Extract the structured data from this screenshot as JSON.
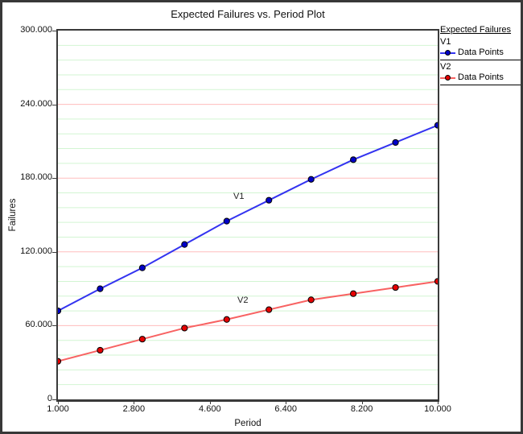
{
  "title": "Expected Failures vs. Period Plot",
  "y_axis": {
    "label": "Failures",
    "tick_labels": [
      "300.000",
      "240.000",
      "180.000",
      "120.000",
      "60.000",
      "0"
    ],
    "tick_values": [
      300,
      240,
      180,
      120,
      60,
      0
    ]
  },
  "x_axis": {
    "label": "Period",
    "tick_labels": [
      "1.000",
      "2.800",
      "4.600",
      "6.400",
      "8.200",
      "10.000"
    ],
    "tick_values": [
      1,
      2.8,
      4.6,
      6.4,
      8.2,
      10
    ]
  },
  "legend": {
    "heading": "Expected Failures",
    "entries": [
      {
        "series": "V1",
        "label": "Data Points"
      },
      {
        "series": "V2",
        "label": "Data Points"
      }
    ]
  },
  "series_labels": {
    "v1": "V1",
    "v2": "V2"
  },
  "colors": {
    "v1_line": "#3333f0",
    "v1_marker": "#0000c8",
    "v2_line": "#f86262",
    "v2_marker": "#e60000",
    "marker_edge": "#000000",
    "grid_minor": "#d2f5d2",
    "grid_major": "#ffbdbd",
    "axis": "#3a3a3a"
  },
  "chart_data": {
    "type": "line",
    "title": "Expected Failures vs. Period Plot",
    "xlabel": "Period",
    "ylabel": "Failures",
    "xlim": [
      1,
      10
    ],
    "ylim": [
      0,
      300
    ],
    "grid": "horizontal only: minor lines every 12 (light green), major lines every 60 (pink)",
    "grid_minor_step": 12,
    "grid_major_step": 60,
    "legend_position": "top-right outside",
    "x": [
      1,
      2,
      3,
      4,
      5,
      6,
      7,
      8,
      9,
      10
    ],
    "series": [
      {
        "name": "V1",
        "values": [
          72,
          90,
          107,
          126,
          145,
          162,
          179,
          195,
          209,
          223
        ]
      },
      {
        "name": "V2",
        "values": [
          31,
          40,
          49,
          58,
          65,
          73,
          81,
          86,
          91,
          96
        ]
      }
    ]
  }
}
